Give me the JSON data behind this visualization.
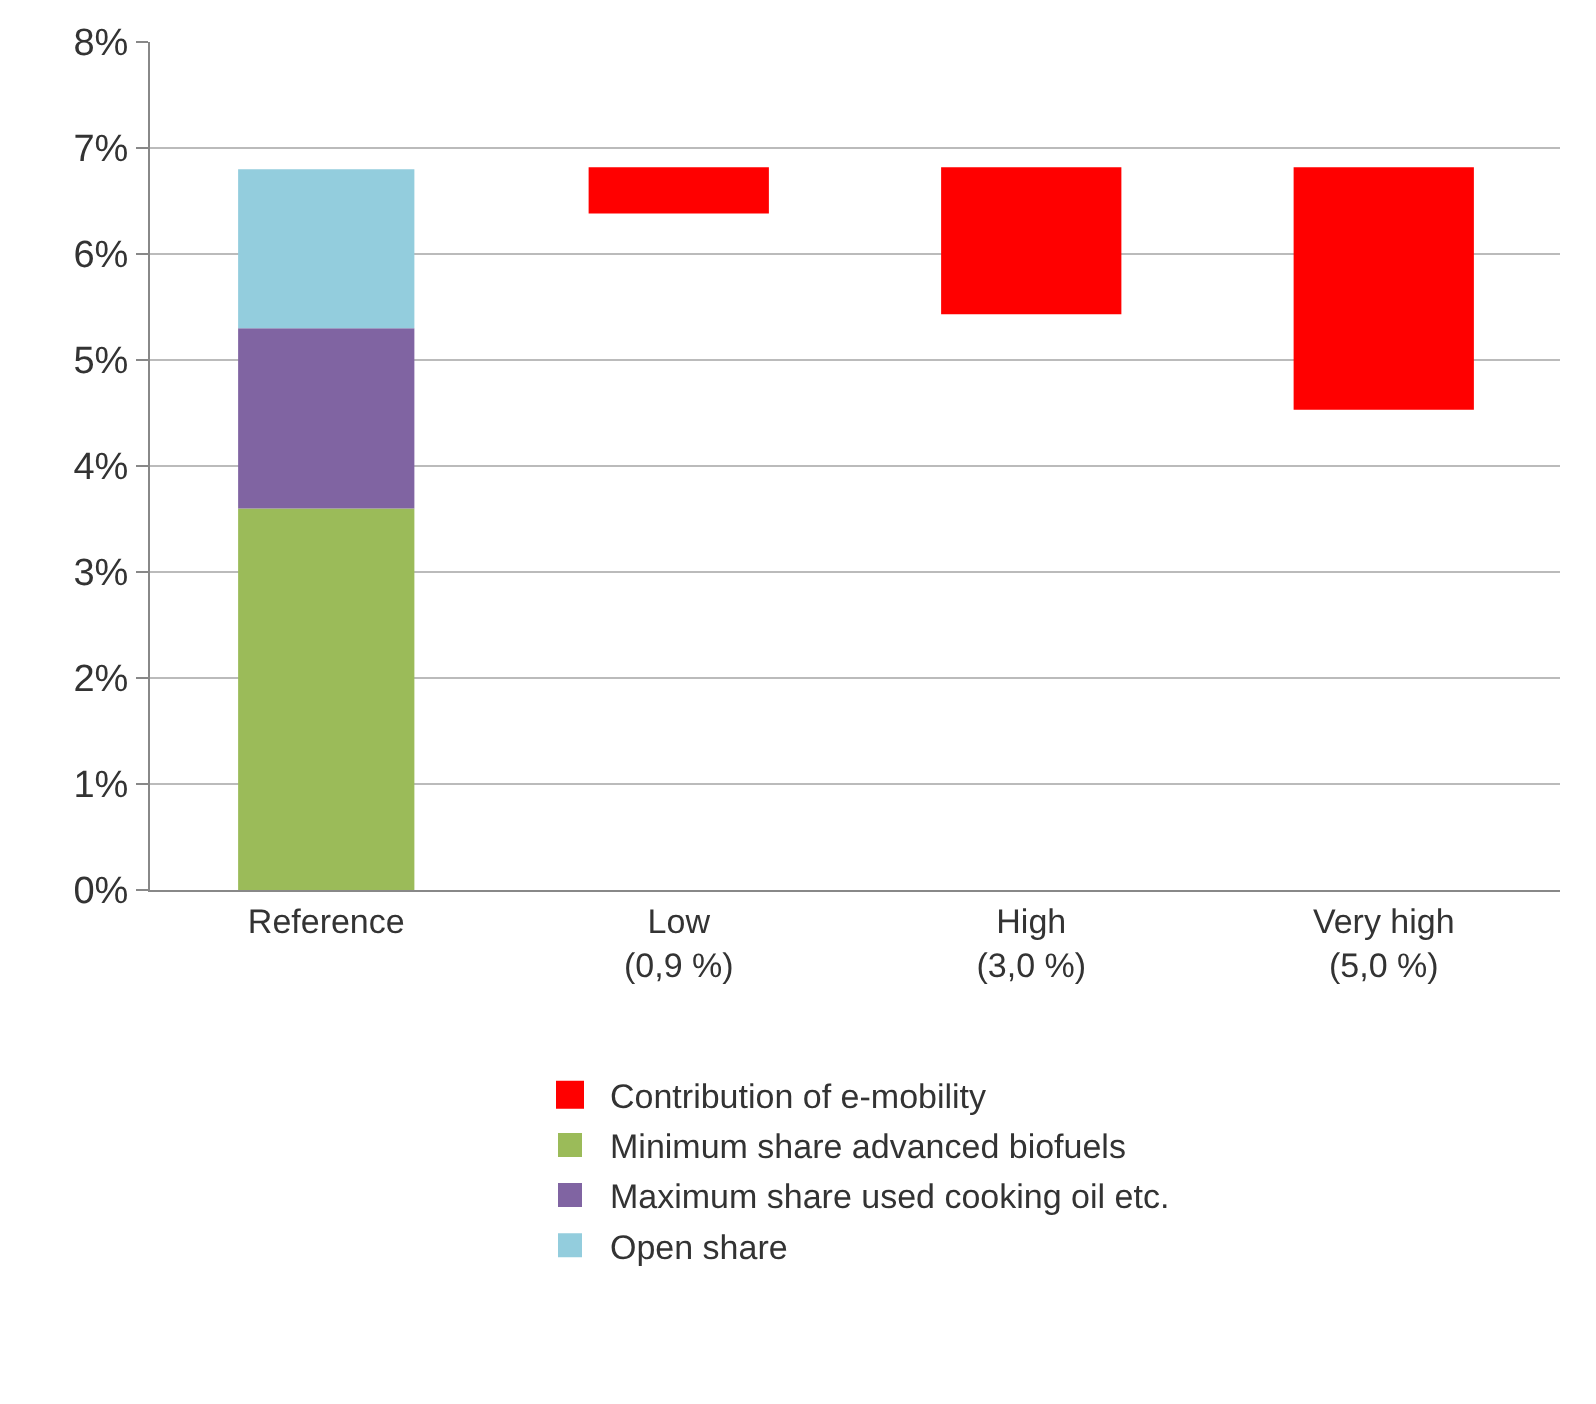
{
  "chart_data": {
    "type": "bar",
    "categories": [
      "Reference",
      "Low\n(0,9 %)",
      "High\n(3,0 %)",
      "Very high\n(5,0 %)"
    ],
    "stacked": true,
    "series": [
      {
        "name": "Contribution of e-mobility",
        "color": "#ff0000",
        "values": [
          null,
          0.4,
          1.35,
          2.25
        ],
        "base": [
          null,
          6.4,
          5.45,
          4.55
        ]
      },
      {
        "name": "Minimum share advanced biofuels",
        "color": "#9bbb59",
        "values": [
          3.6,
          null,
          null,
          null
        ]
      },
      {
        "name": "Maximum share used cooking oil etc.",
        "color": "#8064a2",
        "values": [
          1.7,
          null,
          null,
          null
        ]
      },
      {
        "name": "Open share",
        "color": "#93cddd",
        "values": [
          1.5,
          null,
          null,
          null
        ]
      }
    ],
    "ylim": [
      0,
      8
    ],
    "yticks": [
      {
        "value": 0,
        "label": "0%"
      },
      {
        "value": 1,
        "label": "1%"
      },
      {
        "value": 2,
        "label": "2%"
      },
      {
        "value": 3,
        "label": "3%"
      },
      {
        "value": 4,
        "label": "4%"
      },
      {
        "value": 5,
        "label": "5%"
      },
      {
        "value": 6,
        "label": "6%"
      },
      {
        "value": 7,
        "label": "7%"
      },
      {
        "value": 8,
        "label": "8%"
      }
    ],
    "grid": "y",
    "legend": "bottom"
  }
}
